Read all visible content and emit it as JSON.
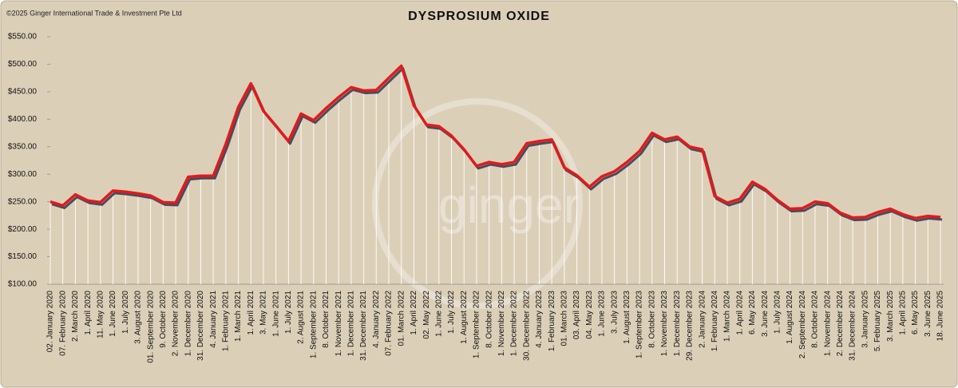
{
  "chart_data": {
    "type": "line",
    "title": "DYSPROSIUM OXIDE",
    "copyright": "©2025 Ginger International Trade & Investment Pte Ltd",
    "watermark": "ginger",
    "categories": [
      "02. January 2020",
      "07. February 2020",
      "2. March 2020",
      "1. April 2020",
      "11. May 2020",
      "1. June 2020",
      "1. July 2020",
      "3. August 2020",
      "01. September 2020",
      "9. October 2020",
      "2. November 2020",
      "1. December 2020",
      "31. December 2020",
      "4. January 2021",
      "1. February 2021",
      "1. March 2021",
      "1. April 2021",
      "3. May 2021",
      "1. June 2021",
      "1. July 2021",
      "2. August 2021",
      "1. September 2021",
      "8. October 2021",
      "1. November 2021",
      "1. December 2021",
      "31. December 2021",
      "4. January 2022",
      "07. February 2022",
      "01. March 2022",
      "1. April 2022",
      "02. May 2022",
      "1. June 2022",
      "1. July 2022",
      "1. August 2022",
      "1. September 2022",
      "8. October 2022",
      "1. November 2022",
      "1. December 2022",
      "30. December 2022",
      "4. January 2023",
      "1. February 2023",
      "01. March 2023",
      "03. April 2023",
      "04. May 2023",
      "1. June 2023",
      "3. July 2023",
      "1. August 2023",
      "1. September 2023",
      "8. October 2023",
      "1. November 2023",
      "1. December 2023",
      "29. December 2023",
      "2. January 2024",
      "1. February 2024",
      "1. March 2024",
      "1. April 2024",
      "6. May 2024",
      "3. June 2024",
      "1. July 2024",
      "1. August 2024",
      "2. September 2024",
      "8. October 2024",
      "1. November 2024",
      "2. December 2024",
      "31. December 2024",
      "3. January 2025",
      "5. February 2025",
      "3. March 2025",
      "1. April 2025",
      "6. May 2025",
      "3. June 2025",
      "18. June 2025"
    ],
    "series": [
      {
        "name": "Dysprosium Oxide",
        "color": "#e01b1b",
        "values": [
          250,
          243,
          263,
          252,
          249,
          270,
          268,
          265,
          261,
          249,
          248,
          295,
          297,
          297,
          355,
          422,
          465,
          415,
          388,
          360,
          410,
          398,
          420,
          440,
          458,
          452,
          453,
          475,
          497,
          425,
          390,
          387,
          370,
          345,
          315,
          322,
          318,
          322,
          356,
          360,
          363,
          312,
          298,
          277,
          296,
          305,
          322,
          342,
          375,
          363,
          368,
          350,
          345,
          260,
          248,
          255,
          286,
          273,
          253,
          237,
          238,
          250,
          247,
          230,
          221,
          222,
          231,
          237,
          227,
          220,
          224,
          222
        ]
      }
    ],
    "ylim": [
      100,
      550
    ],
    "yticks": [
      {
        "value": 100,
        "label": "$100.00"
      },
      {
        "value": 150,
        "label": "$150.00"
      },
      {
        "value": 200,
        "label": "$200.00"
      },
      {
        "value": 250,
        "label": "$250.00"
      },
      {
        "value": 300,
        "label": "$300.00"
      },
      {
        "value": 350,
        "label": "$350.00"
      },
      {
        "value": 400,
        "label": "$400.00"
      },
      {
        "value": 450,
        "label": "$450.00"
      },
      {
        "value": 500,
        "label": "$500.00"
      },
      {
        "value": 550,
        "label": "$550.00"
      }
    ],
    "drop_lines": true
  }
}
